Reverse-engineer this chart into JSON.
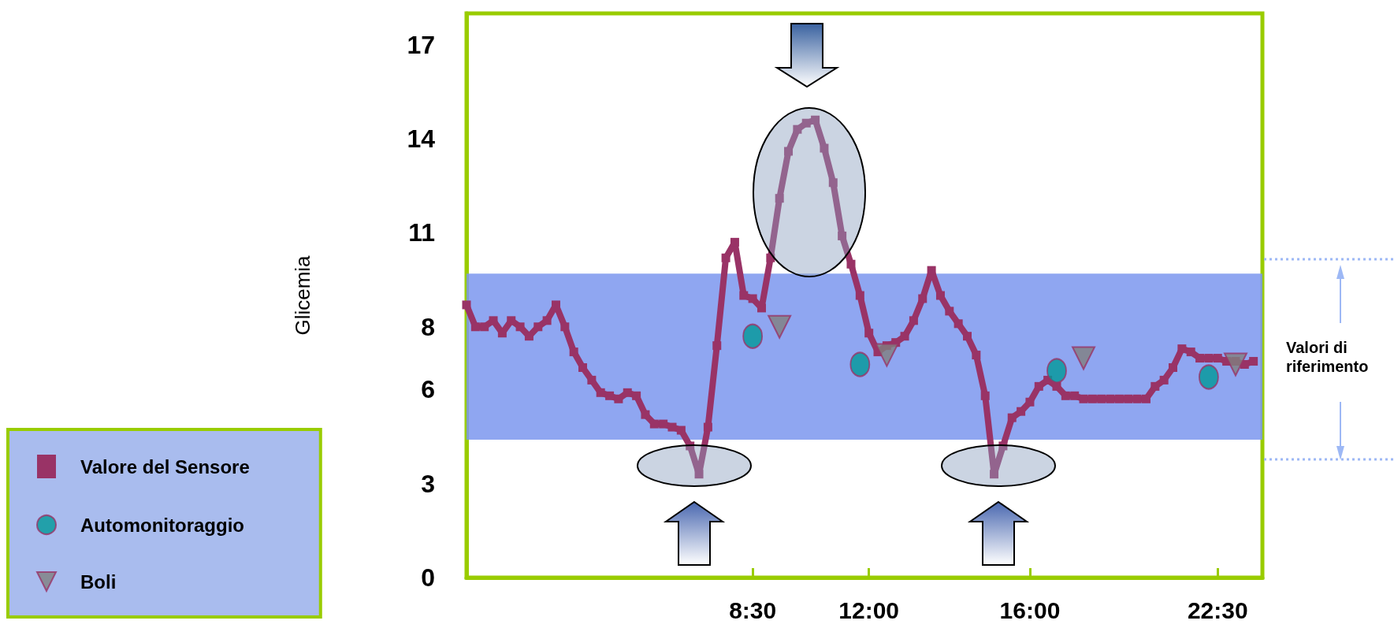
{
  "chart_data": {
    "type": "line",
    "ylabel": "Glicemia",
    "legend": "bottom left",
    "categories": [
      null,
      null,
      null,
      null,
      null,
      null,
      null,
      null,
      null,
      null,
      null,
      null,
      null,
      null,
      null,
      null,
      null,
      null,
      null,
      null,
      null,
      null,
      null,
      null,
      null,
      null,
      null,
      null,
      null,
      null,
      null,
      null,
      "8:30",
      null,
      null,
      null,
      null,
      null,
      null,
      null,
      null,
      null,
      null,
      null,
      null,
      "12:00",
      null,
      null,
      null,
      null,
      null,
      null,
      null,
      null,
      null,
      null,
      null,
      null,
      null,
      null,
      null,
      null,
      null,
      "16:00",
      null,
      null,
      null,
      null,
      null,
      null,
      null,
      null,
      null,
      null,
      null,
      null,
      null,
      null,
      null,
      null,
      null,
      null,
      null,
      null,
      "22:30",
      null,
      null,
      null,
      null,
      null
    ],
    "ylim": [
      0,
      18
    ],
    "yticks": [
      0,
      3,
      6,
      8,
      11,
      14,
      17
    ],
    "bands": [
      {
        "axis": "y",
        "from": 4.4,
        "to": 9.7,
        "label": "Valori di riferimento",
        "color": "#7b96ee"
      }
    ],
    "series": [
      {
        "name": "Valore del Sensore",
        "marker": "square",
        "color": "#993366",
        "values": [
          8.7,
          8.0,
          8.0,
          8.2,
          7.8,
          8.2,
          8.0,
          7.7,
          8.0,
          8.2,
          8.7,
          8.0,
          7.2,
          6.7,
          6.3,
          5.9,
          5.8,
          5.7,
          5.9,
          5.8,
          5.2,
          4.9,
          4.9,
          4.8,
          4.7,
          4.2,
          3.3,
          4.8,
          7.4,
          10.2,
          10.7,
          9.0,
          8.9,
          8.6,
          10.2,
          12.1,
          13.6,
          14.3,
          14.5,
          14.6,
          13.7,
          12.6,
          10.9,
          10.0,
          9.0,
          7.8,
          7.2,
          7.4,
          7.5,
          7.7,
          8.2,
          8.9,
          9.8,
          9.0,
          8.5,
          8.1,
          7.7,
          7.1,
          5.8,
          3.3,
          4.2,
          5.1,
          5.3,
          5.6,
          6.1,
          6.3,
          6.1,
          5.8,
          5.8,
          5.7,
          5.7,
          5.7,
          5.7,
          5.7,
          5.7,
          5.7,
          5.7,
          6.1,
          6.3,
          6.7,
          7.3,
          7.2,
          7.0,
          7.0,
          7.0,
          6.9,
          6.9,
          6.8,
          6.9,
          null
        ]
      },
      {
        "name": "Automonitoraggio",
        "type": "scatter",
        "marker": "circle",
        "color": "#009999",
        "values": [
          null,
          null,
          null,
          null,
          null,
          null,
          null,
          null,
          null,
          null,
          null,
          null,
          null,
          null,
          null,
          null,
          null,
          null,
          null,
          null,
          null,
          null,
          null,
          null,
          null,
          null,
          null,
          null,
          null,
          null,
          null,
          null,
          7.7,
          null,
          null,
          null,
          null,
          null,
          null,
          null,
          null,
          null,
          null,
          null,
          6.8,
          null,
          null,
          null,
          null,
          null,
          null,
          null,
          null,
          null,
          null,
          null,
          null,
          null,
          null,
          null,
          null,
          null,
          null,
          null,
          null,
          null,
          6.6,
          null,
          null,
          null,
          null,
          null,
          null,
          null,
          null,
          null,
          null,
          null,
          null,
          null,
          null,
          null,
          null,
          6.4,
          null,
          null,
          null,
          null,
          null,
          null
        ]
      },
      {
        "name": "Boli",
        "type": "scatter",
        "marker": "triangle",
        "color": "#808080",
        "values": [
          null,
          null,
          null,
          null,
          null,
          null,
          null,
          null,
          null,
          null,
          null,
          null,
          null,
          null,
          null,
          null,
          null,
          null,
          null,
          null,
          null,
          null,
          null,
          null,
          null,
          null,
          null,
          null,
          null,
          null,
          null,
          null,
          null,
          null,
          null,
          8.0,
          null,
          null,
          null,
          null,
          null,
          null,
          null,
          null,
          null,
          null,
          null,
          7.1,
          null,
          null,
          null,
          null,
          null,
          null,
          null,
          null,
          null,
          null,
          null,
          null,
          null,
          null,
          null,
          null,
          null,
          null,
          null,
          null,
          null,
          7.0,
          null,
          null,
          null,
          null,
          null,
          null,
          null,
          null,
          null,
          null,
          null,
          null,
          null,
          null,
          null,
          null,
          6.8,
          null,
          null,
          null
        ]
      }
    ]
  }
}
